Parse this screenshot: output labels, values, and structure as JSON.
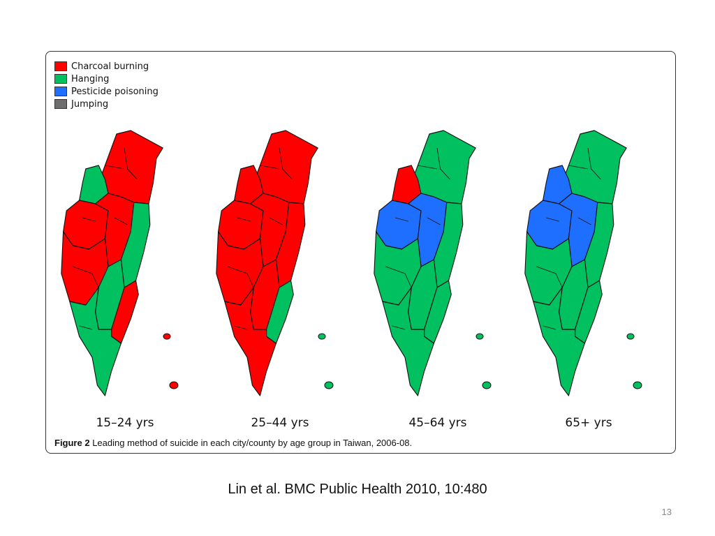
{
  "legend": [
    {
      "label": "Charcoal burning",
      "color": "#ff0000"
    },
    {
      "label": "Hanging",
      "color": "#00c060"
    },
    {
      "label": "Pesticide poisoning",
      "color": "#1e6fff"
    },
    {
      "label": "Jumping",
      "color": "#6e6e6e"
    }
  ],
  "maps": [
    {
      "label": "15–24 yrs",
      "north": "red",
      "northwest": "green",
      "centralwest": "red",
      "center": "red",
      "east": "green",
      "southwest": "red",
      "southcenter": "green",
      "southeast": "red",
      "south": "green",
      "islands": [
        "red",
        "red"
      ]
    },
    {
      "label": "25–44 yrs",
      "north": "red",
      "northwest": "red",
      "centralwest": "red",
      "center": "red",
      "east": "red",
      "southwest": "red",
      "southcenter": "red",
      "southeast": "green",
      "south": "red",
      "islands": [
        "green",
        "green"
      ]
    },
    {
      "label": "45–64 yrs",
      "north": "green",
      "northwest": "red",
      "centralwest": "blue",
      "center": "blue",
      "east": "green",
      "southwest": "green",
      "southcenter": "green",
      "southeast": "green",
      "south": "green",
      "islands": [
        "green",
        "green"
      ]
    },
    {
      "label": "65+ yrs",
      "north": "green",
      "northwest": "blue",
      "centralwest": "blue",
      "center": "blue",
      "east": "green",
      "southwest": "green",
      "southcenter": "green",
      "southeast": "green",
      "south": "green",
      "islands": [
        "green",
        "green"
      ]
    }
  ],
  "caption": {
    "prefix": "Figure 2",
    "text": " Leading method of suicide in each city/county by age group in Taiwan, 2006-08."
  },
  "citation": "Lin et al. BMC Public Health 2010, 10:480",
  "page_number": "13"
}
